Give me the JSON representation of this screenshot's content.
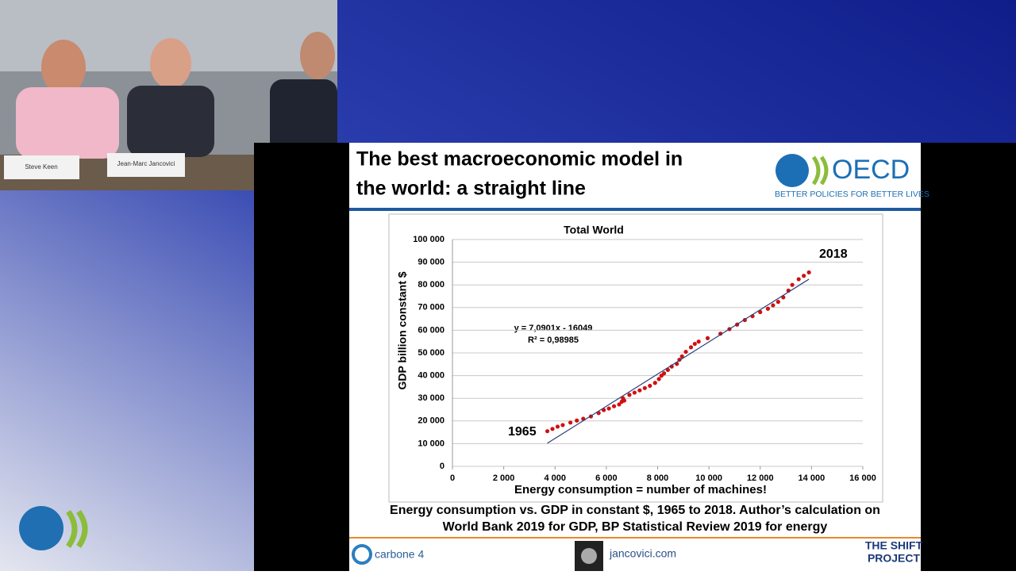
{
  "video": {
    "name_cards": [
      "Steve Keen",
      "Jean-Marc Jancovici"
    ]
  },
  "slide": {
    "title_lines": [
      "The best macroeconomic model in",
      "the world: a straight line"
    ],
    "logo": {
      "name": "OECD",
      "tagline": "BETTER POLICIES FOR BETTER LIVES"
    },
    "caption_lines": [
      "Energy consumption vs. GDP in constant $, 1965 to 2018. Author’s calculation on",
      "World Bank 2019 for GDP, BP Statistical Review 2019 for energy"
    ],
    "footer": [
      "carbone 4",
      "jancovici.com",
      "THE SHIFT",
      "PROJECT"
    ]
  },
  "chart_data": {
    "type": "scatter",
    "title": "Total World",
    "y_label": "GDP billion constant $",
    "x_label": "Energy consumption = number of machines!",
    "equation": "y = 7,0901x - 16049",
    "r_squared": "R² = 0,98985",
    "start_label": "1965",
    "end_label": "2018",
    "xlim": [
      0,
      16000
    ],
    "ylim": [
      0,
      100000
    ],
    "xticks": [
      0,
      {
        "value": 2000,
        "label": "2 000"
      },
      {
        "value": 4000,
        "label": "4 000"
      },
      {
        "value": 6000,
        "label": "6 000"
      },
      {
        "value": 8000,
        "label": "8 000"
      },
      {
        "value": 10000,
        "label": "10 000"
      },
      {
        "value": 12000,
        "label": "12 000"
      },
      {
        "value": 14000,
        "label": "14 000"
      },
      {
        "value": 16000,
        "label": "16 000"
      }
    ],
    "yticks": [
      0,
      {
        "value": 10000,
        "label": "10 000"
      },
      {
        "value": 20000,
        "label": "20 000"
      },
      {
        "value": 30000,
        "label": "30 000"
      },
      {
        "value": 40000,
        "label": "40 000"
      },
      {
        "value": 50000,
        "label": "50 000"
      },
      {
        "value": 60000,
        "label": "60 000"
      },
      {
        "value": 70000,
        "label": "70 000"
      },
      {
        "value": 80000,
        "label": "80 000"
      },
      {
        "value": 90000,
        "label": "90 000"
      },
      {
        "value": 100000,
        "label": "100 000"
      }
    ],
    "grid": true,
    "series": [
      {
        "mode": "markers",
        "color": "#d01010",
        "x": [
          3700,
          3900,
          4100,
          4300,
          4600,
          4850,
          5100,
          5400,
          5700,
          5900,
          6100,
          6300,
          6500,
          6600,
          6650,
          6700,
          6900,
          7100,
          7300,
          7500,
          7700,
          7900,
          8050,
          8150,
          8250,
          8400,
          8550,
          8750,
          8850,
          8950,
          9100,
          9300,
          9450,
          9600,
          9950,
          10450,
          10800,
          11100,
          11400,
          11700,
          12000,
          12300,
          12500,
          12700,
          12900,
          13100,
          13250,
          13500,
          13700,
          13900
        ],
        "values": [
          15500,
          16500,
          17500,
          18200,
          19300,
          20200,
          21000,
          22000,
          23500,
          24800,
          25500,
          26500,
          27300,
          28500,
          30000,
          29000,
          31500,
          32500,
          33500,
          34500,
          35500,
          36800,
          38500,
          40000,
          41000,
          42500,
          44000,
          45200,
          47000,
          48500,
          50500,
          52500,
          54000,
          55000,
          56500,
          58500,
          60500,
          62500,
          64500,
          66200,
          68000,
          69500,
          71000,
          72500,
          74500,
          77500,
          80000,
          82500,
          84000,
          85500
        ]
      },
      {
        "mode": "line",
        "color": "#2a3f7a",
        "x": [
          3700,
          13900
        ],
        "values": [
          10184,
          82503
        ]
      }
    ]
  }
}
